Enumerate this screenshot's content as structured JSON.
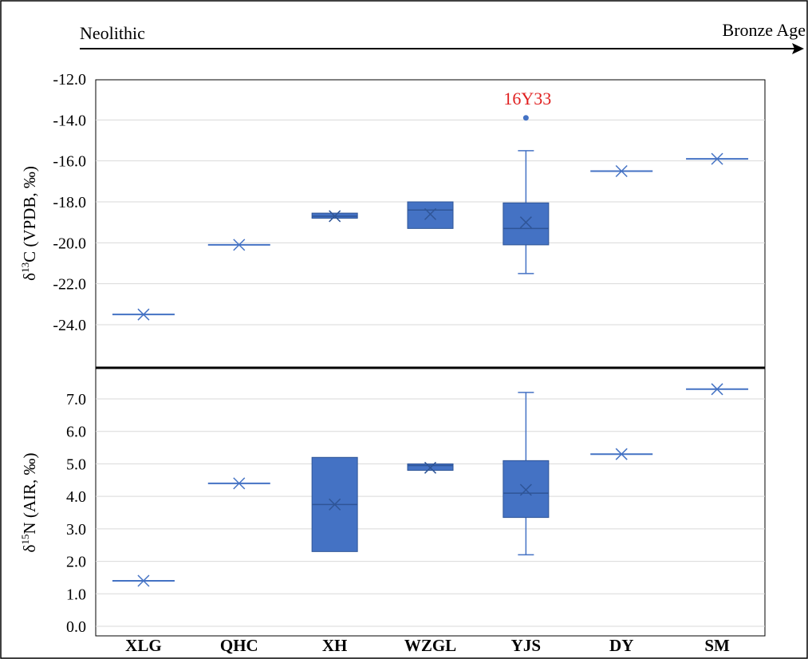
{
  "timeline": {
    "start_label": "Neolithic",
    "end_label": "Bronze Age"
  },
  "colors": {
    "box_fill": "#4472c4",
    "box_stroke": "#2f5597",
    "grid": "#d9d9d9",
    "outlier_label": "#e02020",
    "divider": "#000000"
  },
  "chart_data": [
    {
      "type": "box",
      "ylabel_main": "δ",
      "ylabel_sup": "13",
      "ylabel_rest": "C (VPDB, ‰)",
      "ylim": [
        -25.5,
        -12.0
      ],
      "yticks": [
        -24.0,
        -22.0,
        -20.0,
        -18.0,
        -16.0,
        -14.0,
        -12.0
      ],
      "ytick_labels": [
        "-24.0",
        "-22.0",
        "-20.0",
        "-18.0",
        "-16.0",
        "-14.0",
        "-12.0"
      ],
      "grid": true,
      "categories": [
        "XLG",
        "QHC",
        "XH",
        "WZGL",
        "YJS",
        "DY",
        "SM"
      ],
      "boxes": [
        {
          "category": "XLG",
          "min": -23.5,
          "q1": -23.5,
          "median": -23.5,
          "q3": -23.5,
          "max": -23.5,
          "mean": -23.5
        },
        {
          "category": "QHC",
          "min": -20.1,
          "q1": -20.1,
          "median": -20.1,
          "q3": -20.1,
          "max": -20.1,
          "mean": -20.1
        },
        {
          "category": "XH",
          "min": -18.8,
          "q1": -18.8,
          "median": -18.7,
          "q3": -18.55,
          "max": -18.55,
          "mean": -18.7
        },
        {
          "category": "WZGL",
          "min": -19.3,
          "q1": -19.3,
          "median": -18.4,
          "q3": -18.0,
          "max": -18.0,
          "mean": -18.6
        },
        {
          "category": "YJS",
          "min": -21.5,
          "q1": -20.1,
          "median": -19.3,
          "q3": -18.05,
          "max": -15.5,
          "mean": -19.0
        },
        {
          "category": "DY",
          "min": -16.5,
          "q1": -16.5,
          "median": -16.5,
          "q3": -16.5,
          "max": -16.5,
          "mean": -16.5
        },
        {
          "category": "SM",
          "min": -15.9,
          "q1": -15.9,
          "median": -15.9,
          "q3": -15.9,
          "max": -15.9,
          "mean": -15.9
        }
      ],
      "outliers": [
        {
          "category": "YJS",
          "value": -13.9,
          "label": "16Y33"
        }
      ]
    },
    {
      "type": "box",
      "ylabel_main": "δ",
      "ylabel_sup": "15",
      "ylabel_rest": "N (AIR, ‰)",
      "ylim": [
        0.0,
        7.8
      ],
      "yticks": [
        0.0,
        1.0,
        2.0,
        3.0,
        4.0,
        5.0,
        6.0,
        7.0
      ],
      "ytick_labels": [
        "0.0",
        "1.0",
        "2.0",
        "3.0",
        "4.0",
        "5.0",
        "6.0",
        "7.0"
      ],
      "grid": true,
      "categories": [
        "XLG",
        "QHC",
        "XH",
        "WZGL",
        "YJS",
        "DY",
        "SM"
      ],
      "boxes": [
        {
          "category": "XLG",
          "min": 1.4,
          "q1": 1.4,
          "median": 1.4,
          "q3": 1.4,
          "max": 1.4,
          "mean": 1.4
        },
        {
          "category": "QHC",
          "min": 4.4,
          "q1": 4.4,
          "median": 4.4,
          "q3": 4.4,
          "max": 4.4,
          "mean": 4.4
        },
        {
          "category": "XH",
          "min": 2.3,
          "q1": 2.3,
          "median": 3.75,
          "q3": 5.2,
          "max": 5.2,
          "mean": 3.75
        },
        {
          "category": "WZGL",
          "min": 4.8,
          "q1": 4.8,
          "median": 4.95,
          "q3": 5.0,
          "max": 5.0,
          "mean": 4.88
        },
        {
          "category": "YJS",
          "min": 2.2,
          "q1": 3.35,
          "median": 4.1,
          "q3": 5.1,
          "max": 7.2,
          "mean": 4.2
        },
        {
          "category": "DY",
          "min": 5.3,
          "q1": 5.3,
          "median": 5.3,
          "q3": 5.3,
          "max": 5.3,
          "mean": 5.3
        },
        {
          "category": "SM",
          "min": 7.3,
          "q1": 7.3,
          "median": 7.3,
          "q3": 7.3,
          "max": 7.3,
          "mean": 7.3
        }
      ],
      "outliers": []
    }
  ]
}
